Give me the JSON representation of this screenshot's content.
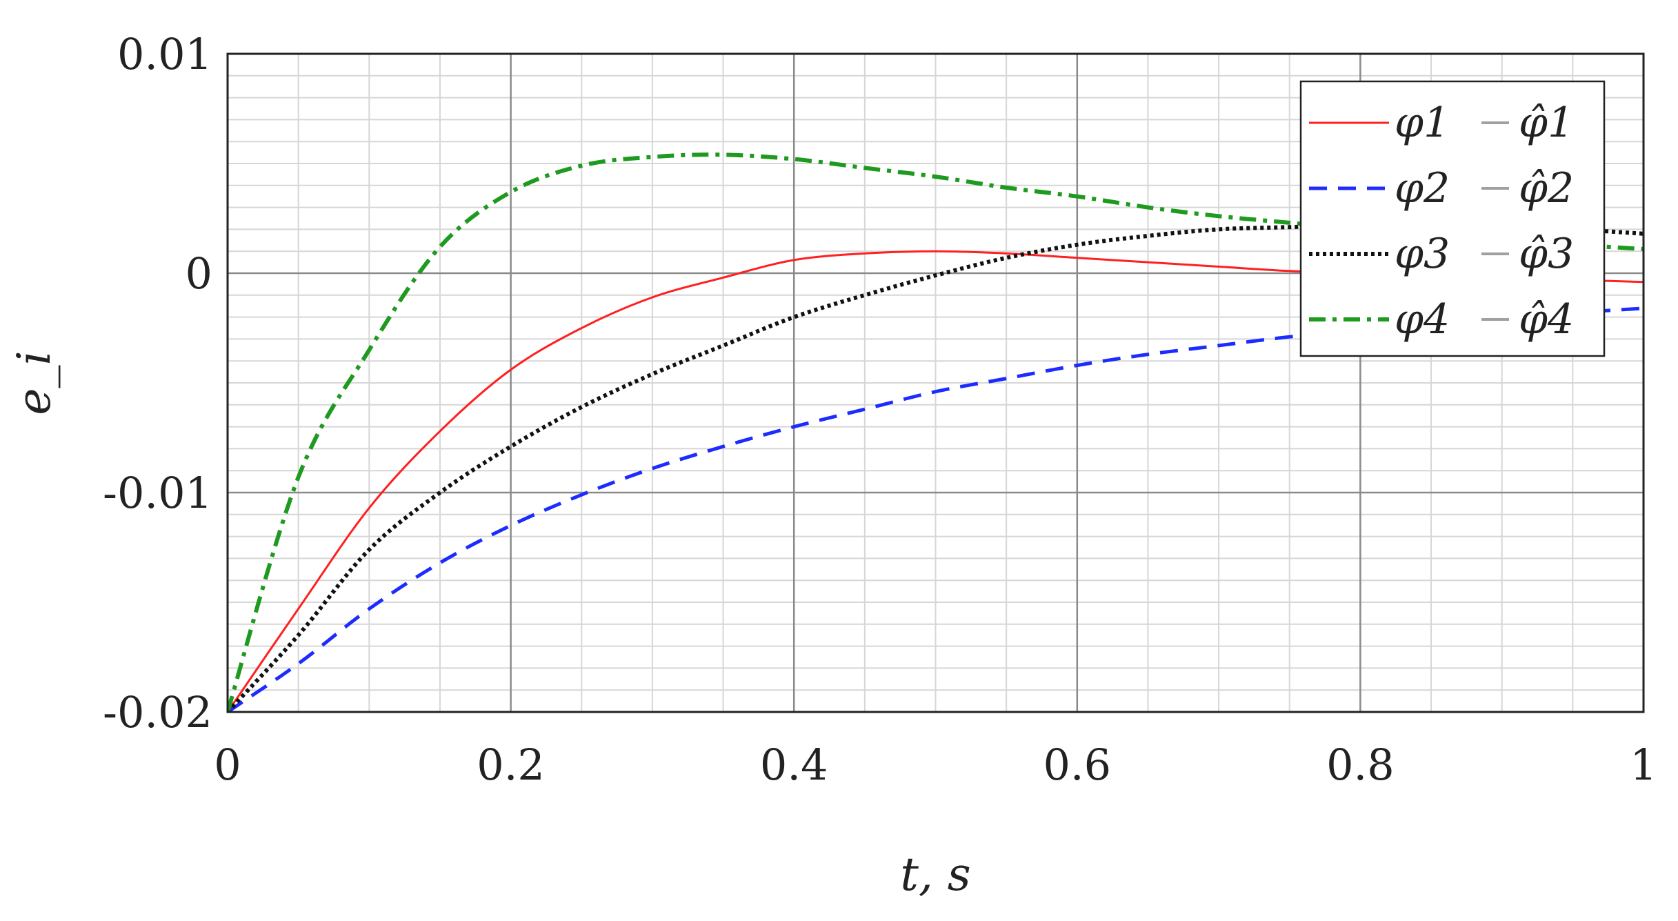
{
  "chart_data": {
    "type": "line",
    "xlabel": "t, s",
    "ylabel": "e_i",
    "xlim": [
      0,
      1
    ],
    "ylim": [
      -0.02,
      0.01
    ],
    "x_ticks": [
      "0",
      "0.2",
      "0.4",
      "0.6",
      "0.8",
      "1"
    ],
    "y_ticks": [
      "0.01",
      "0",
      "-0.01",
      "-0.02"
    ],
    "grid": true,
    "minor_grid": true,
    "legend_position": "top-right",
    "x": [
      0,
      0.05,
      0.1,
      0.15,
      0.2,
      0.25,
      0.3,
      0.35,
      0.4,
      0.45,
      0.5,
      0.55,
      0.6,
      0.65,
      0.7,
      0.75,
      0.8,
      0.85,
      0.9,
      0.95,
      1.0
    ],
    "series": [
      {
        "name": "φ1",
        "color": "#ff2020",
        "style": "solid",
        "values": [
          -0.02,
          -0.0153,
          -0.0107,
          -0.0072,
          -0.0044,
          -0.0025,
          -0.0011,
          -0.0002,
          0.0006,
          0.0009,
          0.001,
          0.0009,
          0.0007,
          0.0005,
          0.0003,
          0.0001,
          0.0,
          -0.0001,
          -0.0002,
          -0.0003,
          -0.0004
        ]
      },
      {
        "name": "φ2",
        "color": "#1c2cff",
        "style": "dashed",
        "values": [
          -0.02,
          -0.0178,
          -0.0153,
          -0.0132,
          -0.0115,
          -0.0101,
          -0.0089,
          -0.0079,
          -0.007,
          -0.0062,
          -0.0054,
          -0.0048,
          -0.0042,
          -0.0037,
          -0.0033,
          -0.0029,
          -0.0026,
          -0.0023,
          -0.002,
          -0.0018,
          -0.0016
        ]
      },
      {
        "name": "φ3",
        "color": "#111111",
        "style": "dotted",
        "values": [
          -0.02,
          -0.0165,
          -0.0126,
          -0.01,
          -0.0079,
          -0.0061,
          -0.0046,
          -0.0033,
          -0.002,
          -0.001,
          -0.0001,
          0.0007,
          0.0013,
          0.0017,
          0.002,
          0.0021,
          0.0022,
          0.0022,
          0.0021,
          0.002,
          0.0018
        ]
      },
      {
        "name": "φ4",
        "color": "#1e9a1e",
        "style": "dashdot",
        "values": [
          -0.02,
          -0.0093,
          -0.0035,
          0.0012,
          0.0037,
          0.0049,
          0.0053,
          0.0054,
          0.0052,
          0.0048,
          0.0044,
          0.0039,
          0.0035,
          0.003,
          0.0026,
          0.0023,
          0.002,
          0.0018,
          0.0015,
          0.0013,
          0.0011
        ]
      }
    ],
    "legend": [
      {
        "label": "φ1",
        "hat_label": "φ̂1"
      },
      {
        "label": "φ2",
        "hat_label": "φ̂2"
      },
      {
        "label": "φ3",
        "hat_label": "φ̂3"
      },
      {
        "label": "φ4",
        "hat_label": "φ̂4"
      }
    ],
    "hat_series_color": "#a0a0a0"
  }
}
